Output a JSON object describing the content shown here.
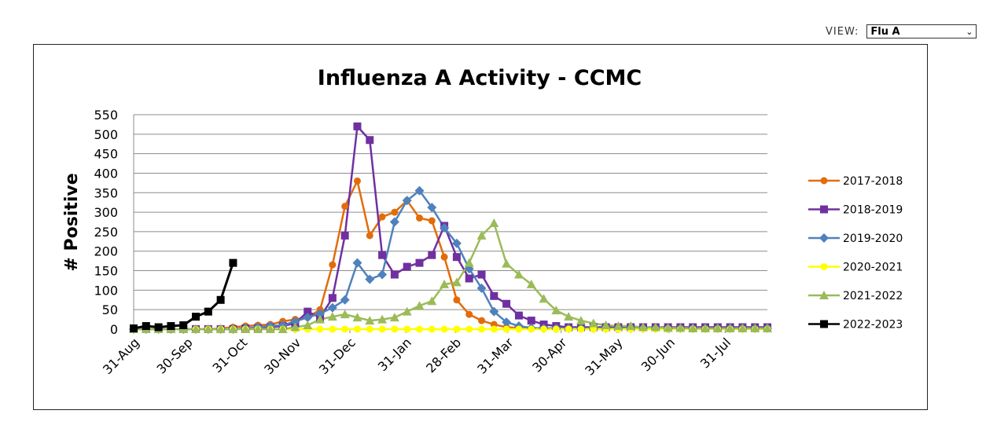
{
  "view": {
    "label": "VIEW:",
    "selected": "Flu A"
  },
  "chart_data": {
    "type": "line",
    "title": "Influenza A Activity - CCMC",
    "ylabel": "# Positive",
    "xlabel": "",
    "ylim": [
      0,
      550
    ],
    "yticks": [
      0,
      50,
      100,
      150,
      200,
      250,
      300,
      350,
      400,
      450,
      500,
      550
    ],
    "xtick_labels": [
      "31-Aug",
      "30-Sep",
      "31-Oct",
      "30-Nov",
      "31-Dec",
      "31-Jan",
      "28-Feb",
      "31-Mar",
      "30-Apr",
      "31-May",
      "30-Jun",
      "31-Jul"
    ],
    "xtick_weeks": [
      0,
      4.3,
      8.7,
      13,
      17.4,
      21.9,
      25.9,
      30.1,
      34.4,
      38.9,
      43.1,
      47.6
    ],
    "grid": true,
    "legend": "right",
    "series": [
      {
        "name": "2017-2018",
        "color": "#E36C0A",
        "marker": "circle",
        "values": [
          0,
          0,
          0,
          0,
          0,
          0,
          0,
          2,
          5,
          8,
          10,
          12,
          20,
          25,
          30,
          50,
          165,
          315,
          380,
          240,
          288,
          300,
          330,
          285,
          278,
          185,
          75,
          38,
          22,
          12,
          5,
          3,
          2,
          2,
          2,
          2,
          2,
          2,
          2,
          2,
          2,
          2,
          2,
          2,
          2,
          2,
          2,
          2,
          2,
          2,
          2,
          2
        ]
      },
      {
        "name": "2018-2019",
        "color": "#7030A0",
        "marker": "square",
        "values": [
          0,
          0,
          0,
          0,
          0,
          0,
          0,
          0,
          0,
          2,
          3,
          5,
          8,
          15,
          45,
          30,
          80,
          240,
          520,
          485,
          190,
          140,
          160,
          170,
          190,
          265,
          185,
          130,
          140,
          85,
          65,
          35,
          22,
          12,
          8,
          5,
          5,
          5,
          5,
          5,
          5,
          5,
          5,
          5,
          5,
          5,
          5,
          5,
          5,
          5,
          5,
          5
        ]
      },
      {
        "name": "2019-2020",
        "color": "#4F81BD",
        "marker": "diamond",
        "values": [
          0,
          0,
          0,
          0,
          0,
          0,
          0,
          0,
          0,
          2,
          5,
          8,
          10,
          20,
          30,
          40,
          55,
          75,
          170,
          128,
          140,
          275,
          330,
          355,
          312,
          260,
          220,
          155,
          105,
          45,
          18,
          8,
          3,
          2,
          2,
          2,
          2,
          2,
          2,
          2,
          2,
          2,
          2,
          2,
          2,
          2,
          2,
          2,
          2,
          2,
          2,
          2
        ]
      },
      {
        "name": "2020-2021",
        "color": "#FFFF00",
        "marker": "circle",
        "values": [
          0,
          0,
          0,
          0,
          0,
          0,
          0,
          0,
          0,
          0,
          0,
          0,
          0,
          0,
          0,
          0,
          0,
          0,
          0,
          0,
          0,
          0,
          0,
          0,
          0,
          0,
          0,
          0,
          0,
          0,
          0,
          0,
          0,
          0,
          0,
          0,
          0,
          0,
          0,
          0,
          0,
          0,
          0,
          0,
          0,
          0,
          0,
          0,
          0,
          0,
          0,
          0
        ]
      },
      {
        "name": "2021-2022",
        "color": "#9BBB59",
        "marker": "triangle",
        "values": [
          0,
          0,
          0,
          0,
          0,
          0,
          0,
          0,
          0,
          0,
          0,
          0,
          0,
          5,
          10,
          25,
          32,
          38,
          30,
          22,
          25,
          30,
          45,
          60,
          72,
          115,
          120,
          170,
          240,
          272,
          168,
          140,
          115,
          78,
          48,
          32,
          22,
          15,
          10,
          8,
          8,
          5,
          5,
          3,
          3,
          2,
          2,
          2,
          2,
          2,
          2,
          2
        ]
      },
      {
        "name": "2022-2023",
        "color": "#000000",
        "marker": "square",
        "values": [
          2,
          8,
          5,
          8,
          10,
          32,
          45,
          75,
          170
        ]
      }
    ]
  }
}
